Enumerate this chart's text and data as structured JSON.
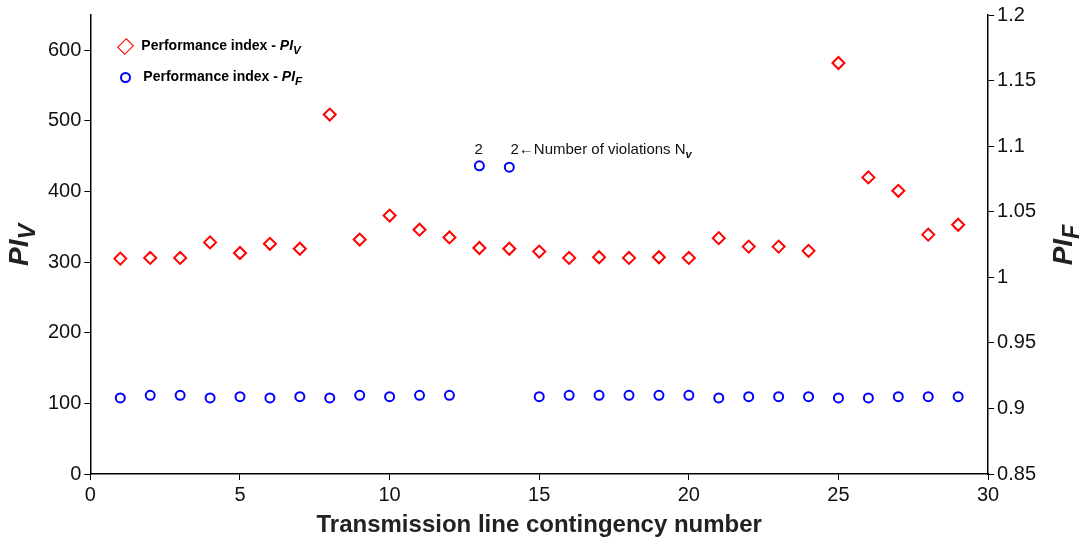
{
  "chart_data": {
    "type": "scatter",
    "xlabel": "Transmission line contingency number",
    "ylabel": "PI$_{V}$",
    "y2label": "PI$_{F}$",
    "x": [
      1,
      2,
      3,
      4,
      5,
      6,
      7,
      8,
      9,
      10,
      11,
      12,
      13,
      14,
      15,
      16,
      17,
      18,
      19,
      20,
      21,
      22,
      23,
      24,
      25,
      26,
      27,
      28,
      29
    ],
    "series": [
      {
        "name": "Performance index - PI$_{V}$",
        "color": "#ff0000",
        "marker": "diamond",
        "values": [
          305,
          306,
          306,
          328,
          313,
          326,
          319,
          509,
          332,
          366,
          346,
          335,
          320,
          319,
          315,
          306,
          307,
          306,
          307,
          306,
          334,
          322,
          322,
          316,
          582,
          420,
          401,
          339,
          353
        ]
      },
      {
        "name": "Performance index - PI$_{F}$",
        "color": "#0000ff",
        "marker": "circle",
        "axis": "y2",
        "values": [
          0.908,
          0.91,
          0.91,
          0.908,
          0.909,
          0.908,
          0.909,
          0.908,
          0.91,
          0.909,
          0.91,
          0.91,
          1.085,
          1.084,
          0.909,
          0.91,
          0.91,
          0.91,
          0.91,
          0.91,
          0.908,
          0.909,
          0.909,
          0.909,
          0.908,
          0.908,
          0.909,
          0.909,
          0.909
        ]
      }
    ],
    "annotations": [
      "2",
      "2←Number of violations N$_{v}$"
    ],
    "xlim": [
      0,
      30
    ],
    "xticks": [
      0,
      5,
      10,
      15,
      20,
      25,
      30
    ],
    "ylim": [
      0,
      650
    ],
    "yticks": [
      0,
      100,
      200,
      300,
      400,
      500,
      600
    ],
    "y2lim": [
      0.85,
      1.2
    ],
    "y2ticks": [
      0.85,
      0.9,
      0.95,
      1,
      1.05,
      1.1,
      1.15,
      1.2
    ],
    "grid": false,
    "legend": "top left"
  }
}
